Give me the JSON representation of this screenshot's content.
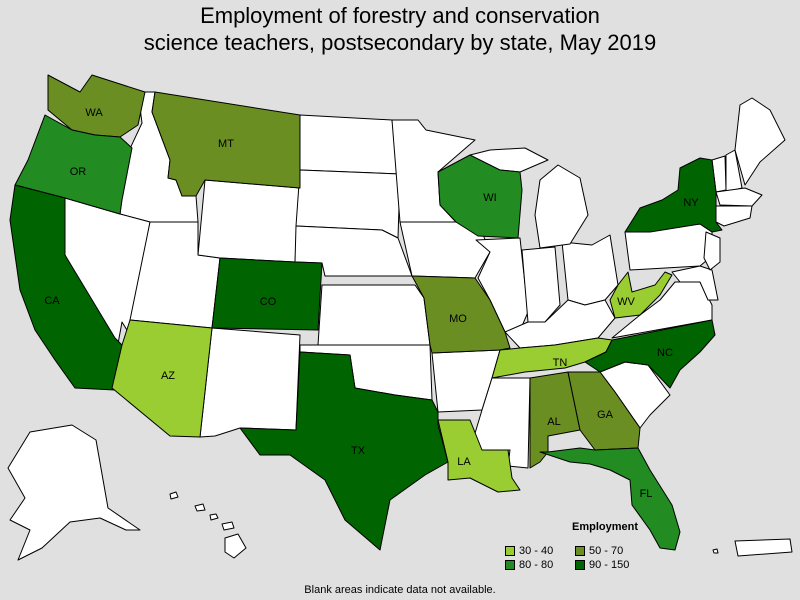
{
  "title_line1": "Employment of forestry and conservation",
  "title_line2": "science teachers, postsecondary by state, May 2019",
  "legend": {
    "title": "Employment",
    "items": [
      {
        "label": "30 - 40",
        "color": "#9acd32"
      },
      {
        "label": "50 - 70",
        "color": "#6b8e23"
      },
      {
        "label": "80 - 80",
        "color": "#228b22"
      },
      {
        "label": "90 - 150",
        "color": "#006400"
      }
    ]
  },
  "footnote": "Blank areas indicate data not available.",
  "colors": {
    "background": "#e0e0e0",
    "no_data": "#ffffff",
    "range_30_40": "#9acd32",
    "range_50_70": "#6b8e23",
    "range_80_80": "#228b22",
    "range_90_150": "#006400"
  },
  "states": {
    "WA": {
      "label": "WA",
      "range": "50 - 70"
    },
    "OR": {
      "label": "OR",
      "range": "80 - 80"
    },
    "CA": {
      "label": "CA",
      "range": "90 - 150"
    },
    "MT": {
      "label": "MT",
      "range": "50 - 70"
    },
    "CO": {
      "label": "CO",
      "range": "90 - 150"
    },
    "AZ": {
      "label": "AZ",
      "range": "30 - 40"
    },
    "TX": {
      "label": "TX",
      "range": "90 - 150"
    },
    "MO": {
      "label": "MO",
      "range": "50 - 70"
    },
    "WI": {
      "label": "WI",
      "range": "80 - 80"
    },
    "LA": {
      "label": "LA",
      "range": "30 - 40"
    },
    "TN": {
      "label": "TN",
      "range": "30 - 40"
    },
    "AL": {
      "label": "AL",
      "range": "50 - 70"
    },
    "GA": {
      "label": "GA",
      "range": "50 - 70"
    },
    "FL": {
      "label": "FL",
      "range": "80 - 80"
    },
    "NC": {
      "label": "NC",
      "range": "90 - 150"
    },
    "WV": {
      "label": "WV",
      "range": "30 - 40"
    },
    "NY": {
      "label": "NY",
      "range": "90 - 150"
    }
  }
}
